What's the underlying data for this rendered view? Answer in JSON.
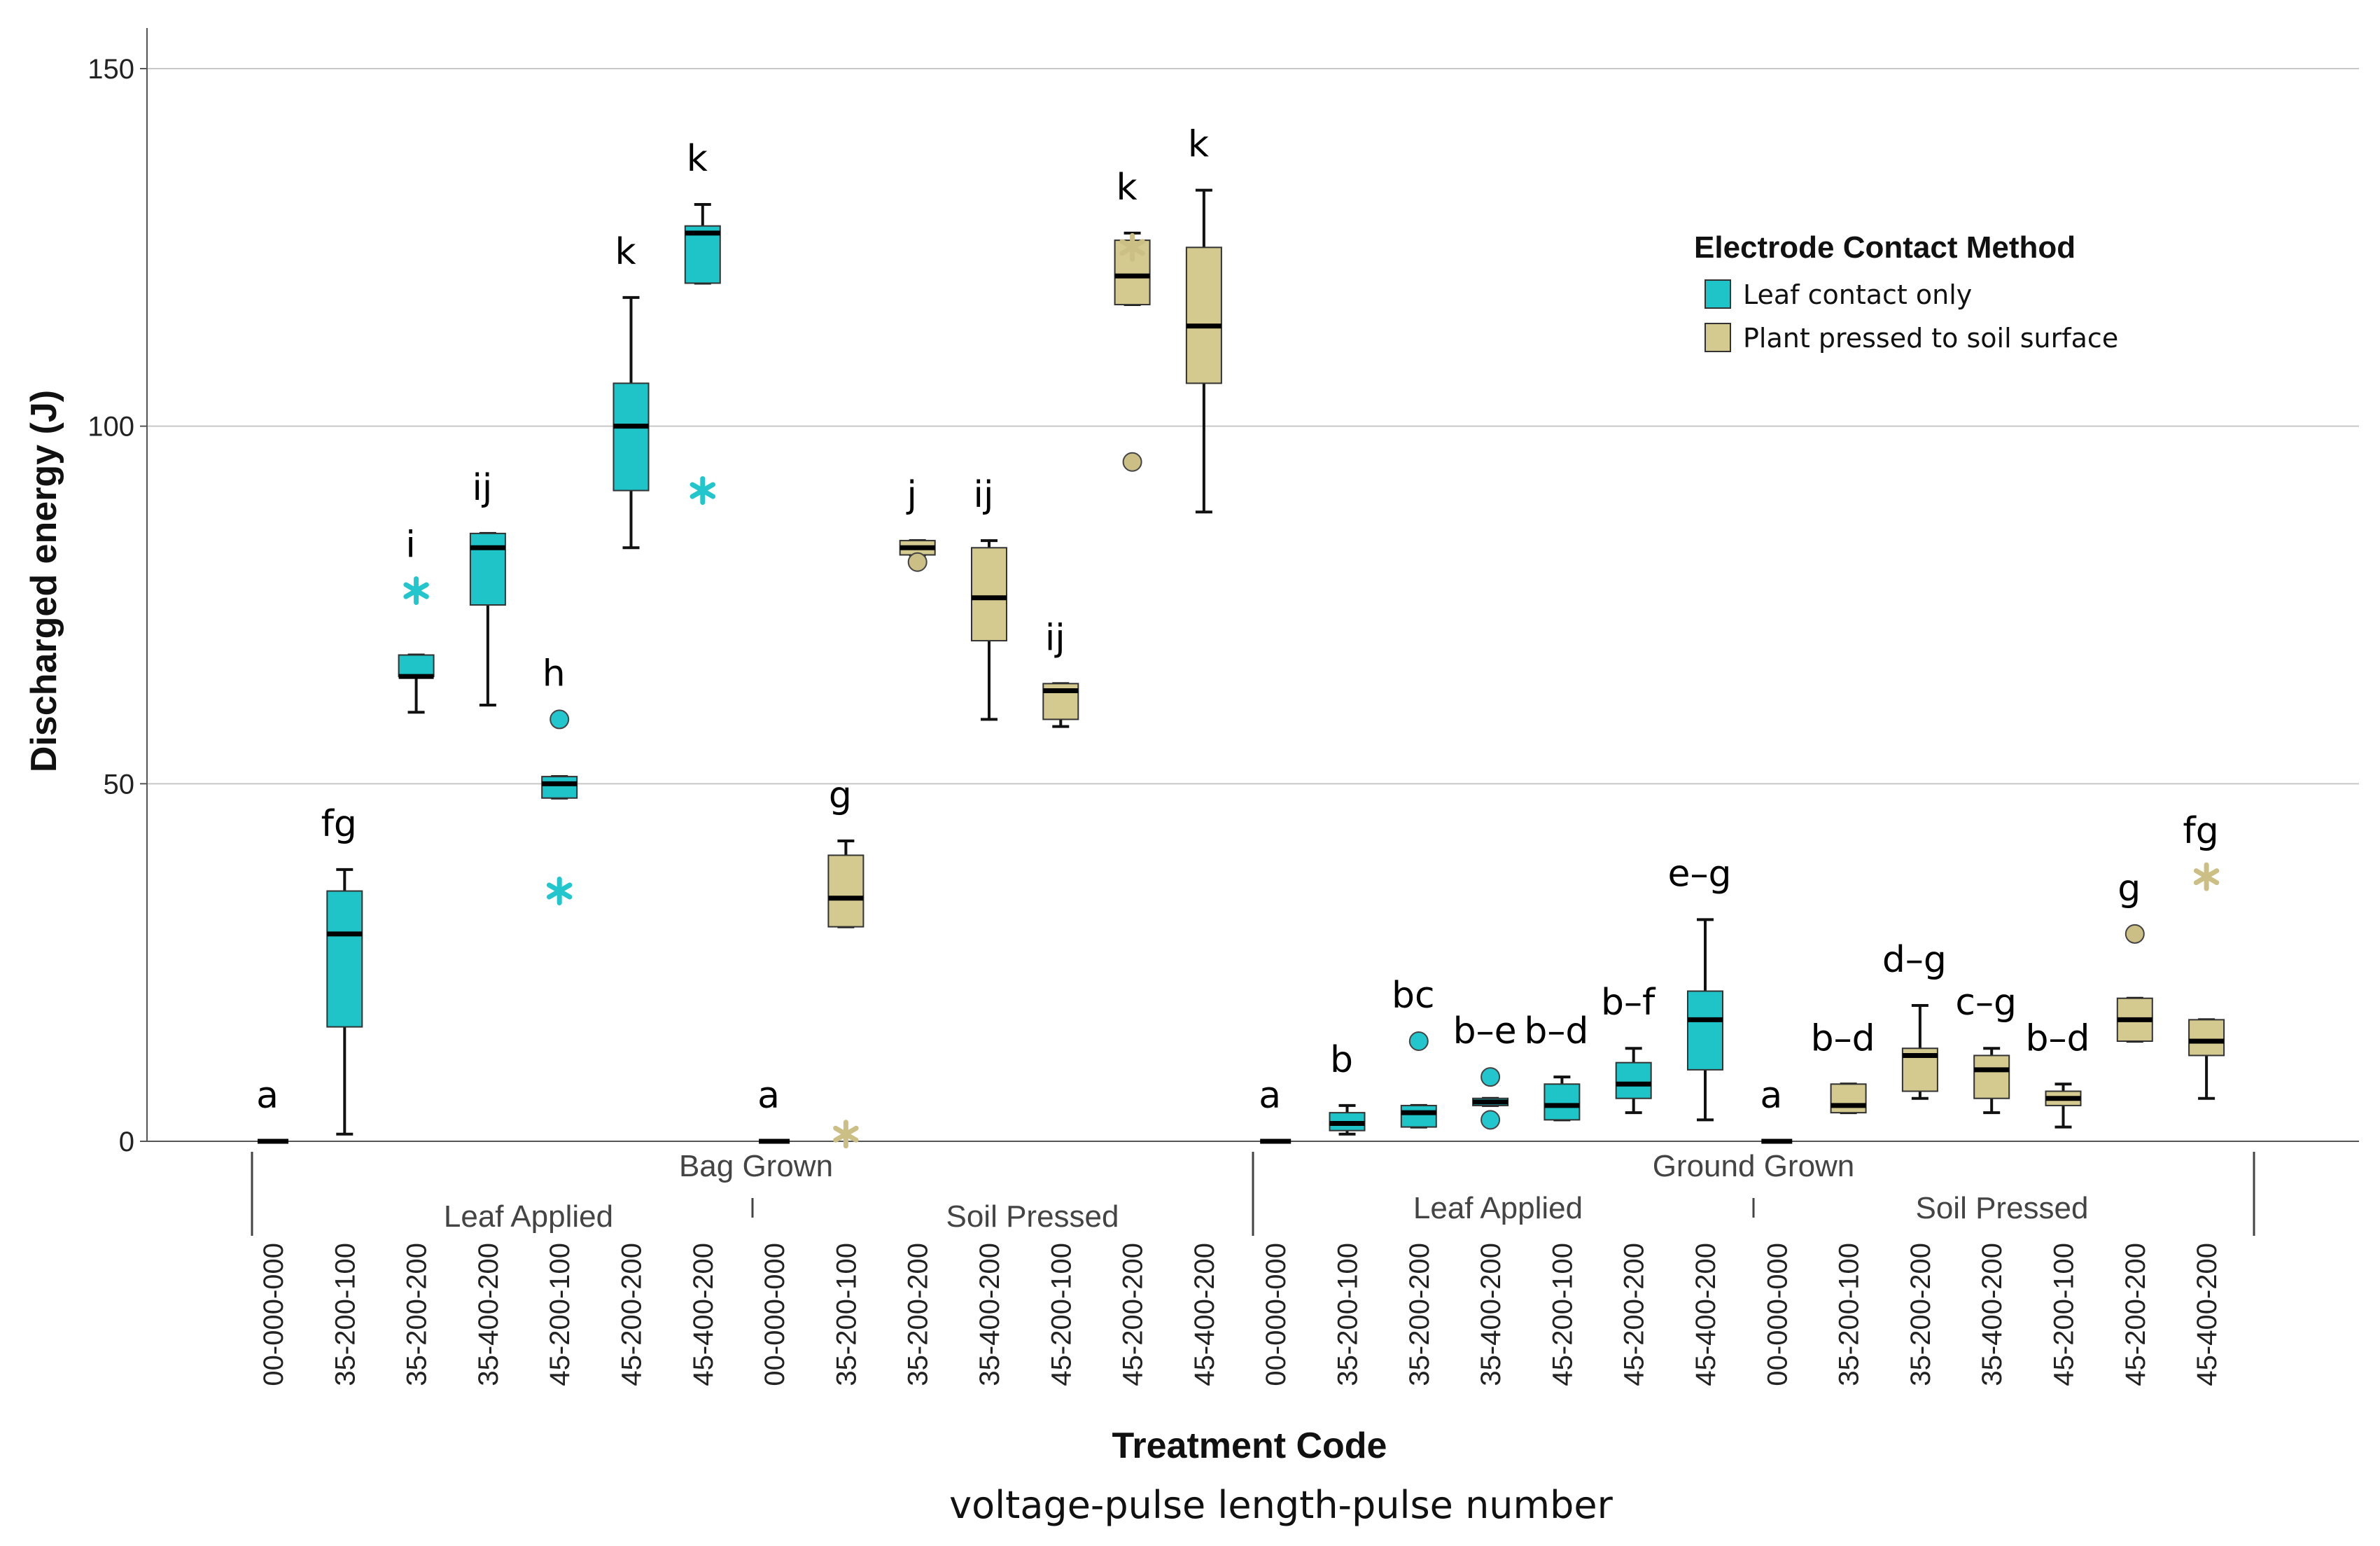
{
  "chart_data": {
    "type": "boxplot",
    "ylabel": "Discharged energy (J)",
    "xlabel": "Treatment Code",
    "xsublabel": "voltage-pulse length-pulse number",
    "ylim": [
      0,
      155
    ],
    "yticks": [
      0,
      50,
      100,
      150
    ],
    "grid": true,
    "legend": {
      "title": "Electrode Contact Method",
      "placement": "top-right",
      "items": [
        {
          "label": "Leaf contact only",
          "color": "#1fc4c9"
        },
        {
          "label": "Plant pressed to soil surface",
          "color": "#d4c98e"
        }
      ]
    },
    "groups": [
      {
        "label": "Bag Grown",
        "subgroups": [
          "Leaf Applied",
          "Soil Pressed"
        ]
      },
      {
        "label": "Ground Grown",
        "subgroups": [
          "Leaf Applied",
          "Soil Pressed"
        ]
      }
    ],
    "colors": {
      "leaf": "#1fc4c9",
      "soil": "#d4c98e",
      "leafMarker": "#22c6cc",
      "soilMarker": "#cbbf86"
    },
    "boxes": [
      {
        "code": "00-000-000",
        "method": "leaf",
        "letter": "a",
        "min": 0,
        "q1": 0,
        "median": 0,
        "q3": 0,
        "max": 0,
        "outliers": [],
        "extremes": []
      },
      {
        "code": "35-200-100",
        "method": "leaf",
        "letter": "fg",
        "min": 1,
        "q1": 16,
        "median": 29,
        "q3": 35,
        "max": 38,
        "outliers": [],
        "extremes": []
      },
      {
        "code": "35-200-200",
        "method": "leaf",
        "letter": "i",
        "min": 60,
        "q1": 65,
        "median": 65,
        "q3": 68,
        "max": 68,
        "outliers": [],
        "extremes": [
          77
        ]
      },
      {
        "code": "35-400-200",
        "method": "leaf",
        "letter": "ij",
        "min": 61,
        "q1": 75,
        "median": 83,
        "q3": 85,
        "max": 85,
        "outliers": [],
        "extremes": []
      },
      {
        "code": "45-200-100",
        "method": "leaf",
        "letter": "h",
        "min": 48,
        "q1": 48,
        "median": 50,
        "q3": 51,
        "max": 51,
        "outliers": [
          59
        ],
        "extremes": [
          35
        ]
      },
      {
        "code": "45-200-200",
        "method": "leaf",
        "letter": "k",
        "min": 83,
        "q1": 91,
        "median": 100,
        "q3": 106,
        "max": 118,
        "outliers": [],
        "extremes": []
      },
      {
        "code": "45-400-200",
        "method": "leaf",
        "letter": "k",
        "min": 120,
        "q1": 120,
        "median": 127,
        "q3": 128,
        "max": 131,
        "outliers": [],
        "extremes": [
          91
        ]
      },
      {
        "code": "00-000-000",
        "method": "soil",
        "letter": "a",
        "min": 0,
        "q1": 0,
        "median": 0,
        "q3": 0,
        "max": 0,
        "outliers": [],
        "extremes": []
      },
      {
        "code": "35-200-100",
        "method": "soil",
        "letter": "g",
        "min": 30,
        "q1": 30,
        "median": 34,
        "q3": 40,
        "max": 42,
        "outliers": [],
        "extremes": [
          1
        ]
      },
      {
        "code": "35-200-200",
        "method": "soil",
        "letter": "j",
        "min": 82,
        "q1": 82,
        "median": 83,
        "q3": 84,
        "max": 84,
        "outliers": [
          81
        ],
        "extremes": []
      },
      {
        "code": "35-400-200",
        "method": "soil",
        "letter": "ij",
        "min": 59,
        "q1": 70,
        "median": 76,
        "q3": 83,
        "max": 84,
        "outliers": [],
        "extremes": []
      },
      {
        "code": "45-200-100",
        "method": "soil",
        "letter": "ij",
        "min": 58,
        "q1": 59,
        "median": 63,
        "q3": 64,
        "max": 64,
        "outliers": [],
        "extremes": []
      },
      {
        "code": "45-200-200",
        "method": "soil",
        "letter": "k",
        "min": 117,
        "q1": 117,
        "median": 121,
        "q3": 126,
        "max": 127,
        "outliers": [
          95
        ],
        "extremes": [
          125
        ]
      },
      {
        "code": "45-400-200",
        "method": "soil",
        "letter": "k",
        "min": 88,
        "q1": 106,
        "median": 114,
        "q3": 125,
        "max": 133,
        "outliers": [],
        "extremes": []
      },
      {
        "code": "00-000-000",
        "method": "leaf",
        "letter": "a",
        "min": 0,
        "q1": 0,
        "median": 0,
        "q3": 0,
        "max": 0,
        "outliers": [],
        "extremes": []
      },
      {
        "code": "35-200-100",
        "method": "leaf",
        "letter": "b",
        "min": 1,
        "q1": 1.5,
        "median": 2.5,
        "q3": 4,
        "max": 5,
        "outliers": [],
        "extremes": []
      },
      {
        "code": "35-200-200",
        "method": "leaf",
        "letter": "bc",
        "min": 2,
        "q1": 2,
        "median": 4,
        "q3": 5,
        "max": 5,
        "outliers": [
          14
        ],
        "extremes": []
      },
      {
        "code": "35-400-200",
        "method": "leaf",
        "letter": "b–e",
        "min": 5,
        "q1": 5,
        "median": 5.5,
        "q3": 6,
        "max": 6,
        "outliers": [
          9,
          3
        ],
        "extremes": []
      },
      {
        "code": "45-200-100",
        "method": "leaf",
        "letter": "b–d",
        "min": 3,
        "q1": 3,
        "median": 5,
        "q3": 8,
        "max": 9,
        "outliers": [],
        "extremes": []
      },
      {
        "code": "45-200-200",
        "method": "leaf",
        "letter": "b–f",
        "min": 4,
        "q1": 6,
        "median": 8,
        "q3": 11,
        "max": 13,
        "outliers": [],
        "extremes": []
      },
      {
        "code": "45-400-200",
        "method": "leaf",
        "letter": "e–g",
        "min": 3,
        "q1": 10,
        "median": 17,
        "q3": 21,
        "max": 31,
        "outliers": [],
        "extremes": []
      },
      {
        "code": "00-000-000",
        "method": "soil",
        "letter": "a",
        "min": 0,
        "q1": 0,
        "median": 0,
        "q3": 0,
        "max": 0,
        "outliers": [],
        "extremes": []
      },
      {
        "code": "35-200-100",
        "method": "soil",
        "letter": "b–d",
        "min": 4,
        "q1": 4,
        "median": 5,
        "q3": 8,
        "max": 8,
        "outliers": [],
        "extremes": []
      },
      {
        "code": "35-200-200",
        "method": "soil",
        "letter": "d–g",
        "min": 6,
        "q1": 7,
        "median": 12,
        "q3": 13,
        "max": 19,
        "outliers": [],
        "extremes": []
      },
      {
        "code": "35-400-200",
        "method": "soil",
        "letter": "c–g",
        "min": 4,
        "q1": 6,
        "median": 10,
        "q3": 12,
        "max": 13,
        "outliers": [],
        "extremes": []
      },
      {
        "code": "45-200-100",
        "method": "soil",
        "letter": "b–d",
        "min": 2,
        "q1": 5,
        "median": 6,
        "q3": 7,
        "max": 8,
        "outliers": [],
        "extremes": []
      },
      {
        "code": "45-200-200",
        "method": "soil",
        "letter": "g",
        "min": 14,
        "q1": 14,
        "median": 17,
        "q3": 20,
        "max": 20,
        "outliers": [
          29
        ],
        "extremes": []
      },
      {
        "code": "45-400-200",
        "method": "soil",
        "letter": "fg",
        "min": 6,
        "q1": 12,
        "median": 14,
        "q3": 17,
        "max": 17,
        "outliers": [],
        "extremes": [
          37
        ]
      }
    ]
  }
}
